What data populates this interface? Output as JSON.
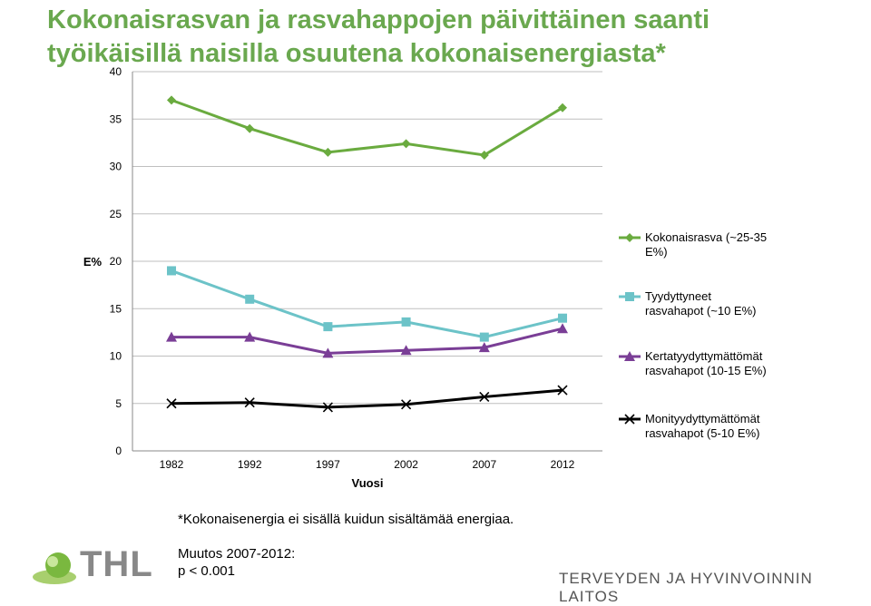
{
  "title": {
    "line1": "Kokonaisrasvan ja rasvahappojen päivittäinen saanti",
    "line2": "työikäisillä naisilla osuutena kokonaisenergiasta*"
  },
  "chart_data": {
    "type": "line",
    "xlabel": "Vuosi",
    "ylabel": "E%",
    "ylim": [
      0,
      40
    ],
    "yticks": [
      0,
      5,
      10,
      15,
      20,
      25,
      30,
      35,
      40
    ],
    "grid": true,
    "legend_position": "right",
    "categories": [
      "1982",
      "1992",
      "1997",
      "2002",
      "2007",
      "2012"
    ],
    "series": [
      {
        "name": "Kokonaisrasva (~25-35 E%)",
        "legend_lines": [
          "Kokonaisrasva (~25-35",
          "E%)"
        ],
        "color": "#6aab3f",
        "marker": "diamond",
        "values": [
          37.0,
          34.0,
          31.5,
          32.4,
          31.2,
          36.2
        ]
      },
      {
        "name": "Tyydyttyneet rasvahapot (~10 E%)",
        "legend_lines": [
          "Tyydyttyneet",
          "rasvahapot (~10 E%)"
        ],
        "color": "#6cc3c8",
        "marker": "square",
        "values": [
          19.0,
          16.0,
          13.1,
          13.6,
          12.0,
          14.0
        ]
      },
      {
        "name": "Kertatyydyttymättömät rasvahapot (10-15 E%)",
        "legend_lines": [
          "Kertatyydyttymättömät",
          "rasvahapot (10-15 E%)"
        ],
        "color": "#7a3e96",
        "marker": "triangle",
        "values": [
          12.0,
          12.0,
          10.3,
          10.6,
          10.9,
          12.9
        ]
      },
      {
        "name": "Monityydyttymättömät rasvahapot (5-10 E%)",
        "legend_lines": [
          "Monityydyttymättömät",
          "rasvahapot (5-10 E%)"
        ],
        "color": "#000000",
        "marker": "x",
        "values": [
          5.0,
          5.1,
          4.6,
          4.9,
          5.7,
          6.4
        ]
      }
    ]
  },
  "notes": {
    "energy": "*Kokonaisenergia ei sisällä kuidun sisältämää energiaa.",
    "change_line1": "Muutos 2007-2012:",
    "change_line2": "p < 0.001"
  },
  "footer": {
    "logo": "THL",
    "organization": "TERVEYDEN JA HYVINVOINNIN LAITOS"
  }
}
